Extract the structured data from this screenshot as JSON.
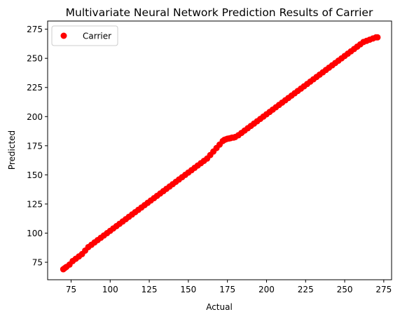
{
  "chart_data": {
    "type": "scatter",
    "title": "Multivariate Neural Network Prediction Results of Carrier",
    "xlabel": "Actual",
    "ylabel": "Predicted",
    "xlim": [
      60,
      280
    ],
    "ylim": [
      60,
      282
    ],
    "xticks": [
      75,
      100,
      125,
      150,
      175,
      200,
      225,
      250,
      275
    ],
    "yticks": [
      75,
      100,
      125,
      150,
      175,
      200,
      225,
      250,
      275
    ],
    "xtick_labels": [
      "75",
      "100",
      "125",
      "150",
      "175",
      "200",
      "225",
      "250",
      "275"
    ],
    "ytick_labels": [
      "75",
      "100",
      "125",
      "150",
      "175",
      "200",
      "225",
      "250",
      "275"
    ],
    "grid": false,
    "legend": {
      "position": "top-left",
      "entries": [
        "Carrier"
      ]
    },
    "series": [
      {
        "name": "Carrier",
        "color": "#ff0000",
        "marker": "circle",
        "x": [
          70,
          71,
          72,
          74,
          76,
          78,
          80,
          82,
          84,
          86,
          88,
          90,
          92,
          94,
          96,
          98,
          100,
          102,
          104,
          106,
          108,
          110,
          112,
          114,
          116,
          118,
          120,
          122,
          124,
          126,
          128,
          130,
          132,
          134,
          136,
          138,
          140,
          142,
          144,
          146,
          148,
          150,
          152,
          154,
          156,
          158,
          160,
          162,
          164,
          166,
          168,
          170,
          172,
          173,
          174,
          175,
          176,
          177,
          178,
          179,
          180,
          182,
          184,
          186,
          188,
          190,
          192,
          194,
          196,
          198,
          200,
          202,
          204,
          206,
          208,
          210,
          212,
          214,
          216,
          218,
          220,
          222,
          224,
          226,
          228,
          230,
          232,
          234,
          236,
          238,
          240,
          242,
          244,
          246,
          248,
          250,
          252,
          254,
          256,
          258,
          260,
          262,
          264,
          266,
          268,
          270,
          271
        ],
        "y": [
          69,
          70,
          71,
          73,
          76,
          78,
          80,
          82,
          85,
          88,
          90,
          92,
          94,
          96,
          98,
          100,
          102,
          104,
          106,
          108,
          110,
          112,
          114,
          116,
          118,
          120,
          122,
          124,
          126,
          128,
          130,
          132,
          134,
          136,
          138,
          140,
          142,
          144,
          146,
          148,
          150,
          152,
          154,
          156,
          158,
          160,
          162,
          164,
          167,
          170,
          173,
          176,
          179,
          180,
          180.5,
          181,
          181.2,
          181.5,
          182,
          182,
          182.5,
          184,
          186,
          188,
          190,
          192,
          194,
          196,
          198,
          200,
          202,
          204,
          206,
          208,
          210,
          212,
          214,
          216,
          218,
          220,
          222,
          224,
          226,
          228,
          230,
          232,
          234,
          236,
          238,
          240,
          242,
          244,
          246,
          248,
          250,
          252,
          254,
          256,
          258,
          260,
          262,
          264,
          265,
          266,
          267,
          268,
          268
        ]
      }
    ]
  }
}
